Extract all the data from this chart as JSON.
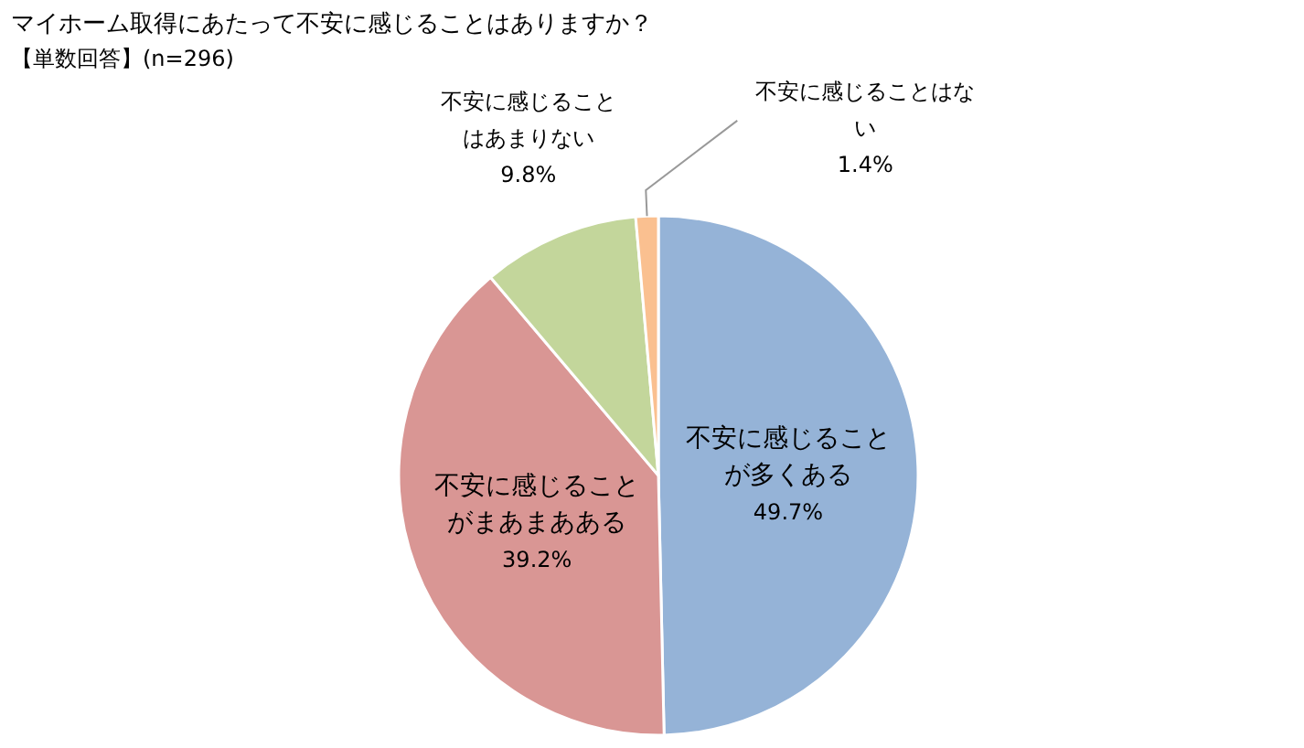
{
  "chart_data": {
    "type": "pie",
    "title": "マイホーム取得にあたって不安に感じることはありますか？",
    "subtitle": "【単数回答】(n=296)",
    "categories": [
      "不安に感じることが多くある",
      "不安に感じることがまあまあある",
      "不安に感じることはあまりない",
      "不安に感じることはない"
    ],
    "values": [
      49.7,
      39.2,
      9.8,
      1.4
    ],
    "colors": [
      "#95b3d7",
      "#d99694",
      "#c3d69b",
      "#fac090"
    ],
    "value_labels": [
      "49.7%",
      "39.2%",
      "9.8%",
      "1.4%"
    ]
  }
}
